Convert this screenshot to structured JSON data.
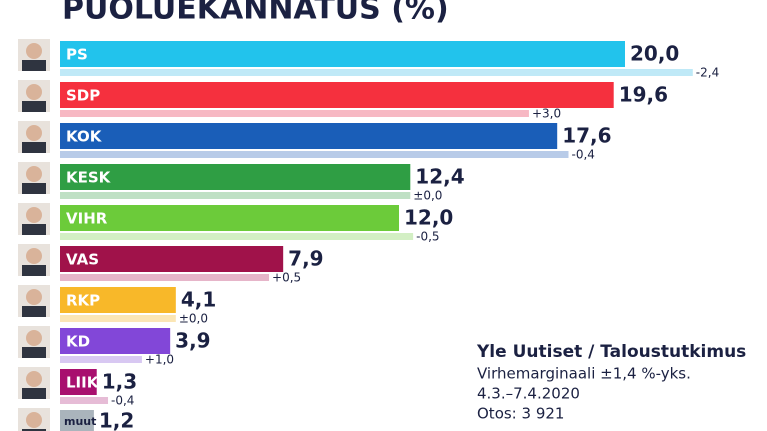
{
  "chart_data": {
    "type": "bar",
    "orientation": "horizontal",
    "title": "PUOLUEKANNATUS (%)",
    "categories": [
      "PS",
      "SDP",
      "KOK",
      "KESK",
      "VIHR",
      "VAS",
      "RKP",
      "KD",
      "LIIK",
      "muut"
    ],
    "values": [
      20.0,
      19.6,
      17.6,
      12.4,
      12.0,
      7.9,
      4.1,
      3.9,
      1.3,
      1.2
    ],
    "value_labels": [
      "20,0",
      "19,6",
      "17,6",
      "12,4",
      "12,0",
      "7,9",
      "4,1",
      "3,9",
      "1,3",
      "1,2"
    ],
    "previous_values": [
      22.4,
      16.6,
      18.0,
      12.4,
      12.5,
      7.4,
      4.1,
      2.9,
      1.7,
      null
    ],
    "changes": [
      -2.4,
      3.0,
      -0.4,
      0,
      -0.5,
      0.5,
      0,
      1.0,
      -0.4,
      null
    ],
    "change_labels": [
      "-2,4",
      "+3,0",
      "-0,4",
      "±0,0",
      "-0,5",
      "+0,5",
      "±0,0",
      "+1,0",
      "-0,4",
      null
    ],
    "colors": [
      "#22c3ec",
      "#f5303e",
      "#1a5eb8",
      "#2f9e44",
      "#6ccb3a",
      "#a0124a",
      "#f8b829",
      "#8247d8",
      "#a80f6e",
      "#aab4bc"
    ],
    "previous_colors": [
      "#bfe9f7",
      "#f7b8c3",
      "#b8cbe8",
      "#bfe0c4",
      "#d3efc4",
      "#e6b5c9",
      "#fbe6b5",
      "#d8c8f2",
      "#e6bcd6",
      null
    ],
    "source": {
      "title": "Yle Uutiset / Taloustutkimus",
      "lines": [
        "Virhemarginaali ±1,4 %-yks.",
        "4.3.–7.4.2020",
        "Otos: 3 921"
      ]
    }
  }
}
